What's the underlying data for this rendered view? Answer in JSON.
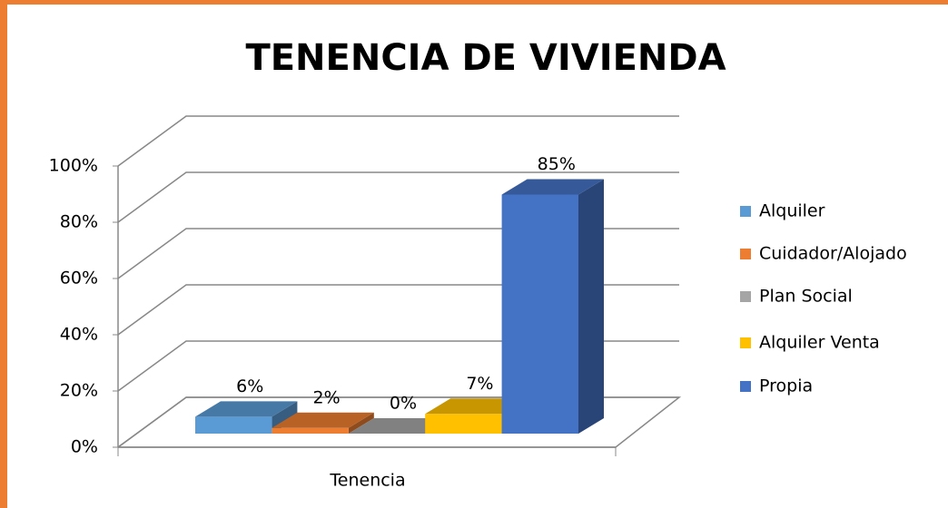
{
  "chart_data": {
    "type": "bar3d",
    "title": "TENENCIA DE VIVIENDA",
    "categories": [
      "Tenencia"
    ],
    "series": [
      {
        "name": "Alquiler",
        "color": "#5b9bd5",
        "values": [
          6
        ],
        "value_labels": [
          "6%"
        ]
      },
      {
        "name": "Cuidador/Alojado",
        "color": "#ed7d31",
        "values": [
          2
        ],
        "value_labels": [
          "2%"
        ]
      },
      {
        "name": "Plan Social",
        "color": "#a5a5a5",
        "values": [
          0
        ],
        "value_labels": [
          "0%"
        ]
      },
      {
        "name": "Alquiler Venta",
        "color": "#ffc000",
        "values": [
          7
        ],
        "value_labels": [
          "7%"
        ]
      },
      {
        "name": "Propia",
        "color": "#4472c4",
        "values": [
          85
        ],
        "value_labels": [
          "85%"
        ]
      }
    ],
    "ylim": [
      0,
      100
    ],
    "yticks": [
      {
        "value": 0,
        "label": "0%"
      },
      {
        "value": 20,
        "label": "20%"
      },
      {
        "value": 40,
        "label": "40%"
      },
      {
        "value": 60,
        "label": "60%"
      },
      {
        "value": 80,
        "label": "80%"
      },
      {
        "value": 100,
        "label": "100%"
      }
    ],
    "grid": true,
    "legend": "right"
  }
}
